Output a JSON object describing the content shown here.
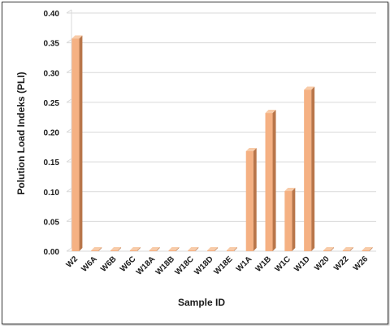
{
  "chart_data": {
    "type": "bar",
    "xlabel": "Sample ID",
    "ylabel": "Polution Load Indeks (PLI)",
    "categories": [
      "W2",
      "W6A",
      "W6B",
      "W6C",
      "W18A",
      "W18B",
      "W18C",
      "W18D",
      "W18E",
      "W1A",
      "W1B",
      "W1C",
      "W1D",
      "W20",
      "W22",
      "W26"
    ],
    "values": [
      0.357,
      0.0,
      0.0,
      0.0,
      0.0,
      0.0,
      0.0,
      0.0,
      0.0,
      0.168,
      0.232,
      0.101,
      0.271,
      0.0,
      0.0,
      0.0
    ],
    "ylim": [
      0,
      0.4
    ],
    "yticks": [
      "0.00",
      "0.05",
      "0.10",
      "0.15",
      "0.20",
      "0.25",
      "0.30",
      "0.35",
      "0.40"
    ],
    "grid": true,
    "colors": {
      "bar_front": "#f5b183",
      "bar_side": "#b9764a",
      "bar_top": "#f8cba8",
      "grid": "#d9d9d9"
    }
  }
}
